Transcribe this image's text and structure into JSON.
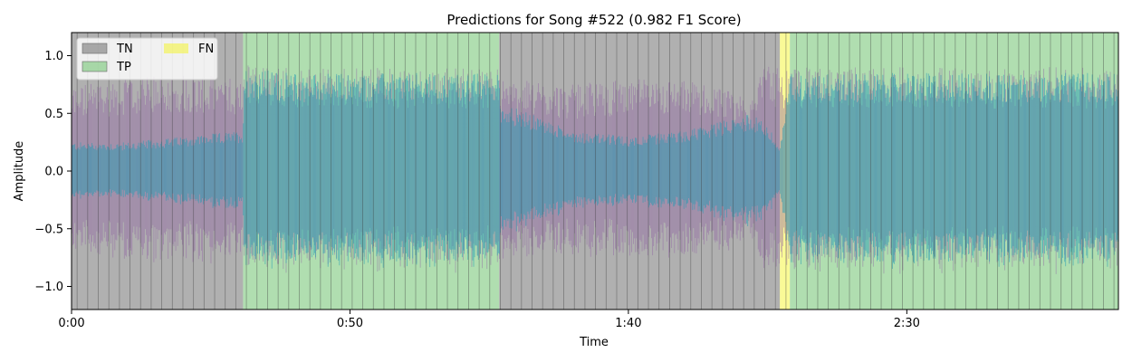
{
  "chart_data": {
    "type": "area",
    "title": "Predictions for Song #522 (0.982 F1 Score)",
    "xlabel": "Time",
    "ylabel": "Amplitude",
    "xlim": [
      0,
      188
    ],
    "ylim": [
      -1.2,
      1.2
    ],
    "x_ticks": [
      {
        "value": 0,
        "label": "0:00"
      },
      {
        "value": 50,
        "label": "0:50"
      },
      {
        "value": 100,
        "label": "1:40"
      },
      {
        "value": 150,
        "label": "2:30"
      }
    ],
    "y_ticks": [
      {
        "value": -1.0,
        "label": "−1.0"
      },
      {
        "value": -0.5,
        "label": "−0.5"
      },
      {
        "value": 0.0,
        "label": "0.0"
      },
      {
        "value": 0.5,
        "label": "0.5"
      },
      {
        "value": 1.0,
        "label": "1.0"
      }
    ],
    "legend": {
      "placement": "upper-left",
      "entries": [
        {
          "label": "TN",
          "color": "#808080"
        },
        {
          "label": "TP",
          "color": "#7fc97f"
        },
        {
          "label": "FN",
          "color": "#f5f542"
        }
      ]
    },
    "regions": [
      {
        "class": "TN",
        "start": 0,
        "end": 30.8
      },
      {
        "class": "TP",
        "start": 30.8,
        "end": 76.8
      },
      {
        "class": "TN",
        "start": 76.8,
        "end": 127.2
      },
      {
        "class": "FN",
        "start": 127.2,
        "end": 129.0
      },
      {
        "class": "TP",
        "start": 129.0,
        "end": 188
      }
    ],
    "region_colors": {
      "TN": "#808080",
      "TP": "#7fc97f",
      "FN": "#f5f542"
    },
    "waveform_envelope": {
      "x": [
        0,
        10,
        20,
        30.8,
        31,
        40,
        50,
        60,
        70,
        76.8,
        77,
        90,
        100,
        110,
        118,
        122,
        125,
        127.2,
        129,
        135,
        150,
        165,
        180,
        188
      ],
      "inner": [
        0.25,
        0.25,
        0.3,
        0.35,
        0.9,
        0.85,
        0.85,
        0.85,
        0.85,
        0.85,
        0.6,
        0.35,
        0.3,
        0.35,
        0.45,
        0.5,
        0.4,
        0.2,
        0.85,
        0.85,
        0.85,
        0.85,
        0.85,
        0.85
      ],
      "outer": [
        0.75,
        0.8,
        0.85,
        0.8,
        0.95,
        0.9,
        0.9,
        0.9,
        0.9,
        0.9,
        0.8,
        0.75,
        0.8,
        0.8,
        0.7,
        0.65,
        0.95,
        0.9,
        0.9,
        0.9,
        0.9,
        0.9,
        0.9,
        0.9
      ]
    },
    "waveform_colors": {
      "primary": "#1f9bb5",
      "secondary": "#8e5ea2"
    }
  }
}
